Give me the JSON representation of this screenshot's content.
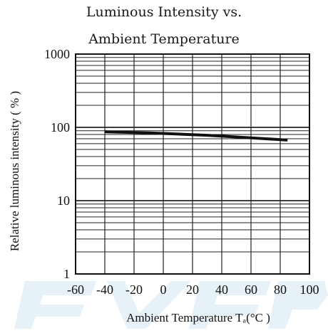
{
  "chart_data": {
    "type": "line",
    "title": [
      "Luminous Intensity vs.",
      "Ambient Temperature"
    ],
    "xlabel": "Ambient Temperature Tₐ(°C )",
    "ylabel": "Relative luminous intensity ( % )",
    "xlim": [
      -60,
      100
    ],
    "ylim": [
      1,
      1000
    ],
    "yscale": "log",
    "xticks": [
      -60,
      -40,
      -20,
      0,
      20,
      40,
      60,
      80,
      100
    ],
    "xtick_labels": [
      "-60",
      "-40",
      "-20",
      "0",
      "20",
      "40",
      "60",
      "80",
      "100"
    ],
    "yticks": [
      1,
      10,
      100,
      1000
    ],
    "ytick_labels": [
      "1",
      "10",
      "100",
      "1000"
    ],
    "grid": true,
    "series": [
      {
        "x": [
          -40,
          -10,
          10,
          30,
          50,
          70,
          85
        ],
        "y": [
          87,
          84,
          81,
          78,
          74,
          70,
          67
        ]
      }
    ],
    "colors": {
      "line": "#111111",
      "grid": "#222222",
      "background": "#ffffff",
      "watermark": "#c9dff0"
    }
  }
}
